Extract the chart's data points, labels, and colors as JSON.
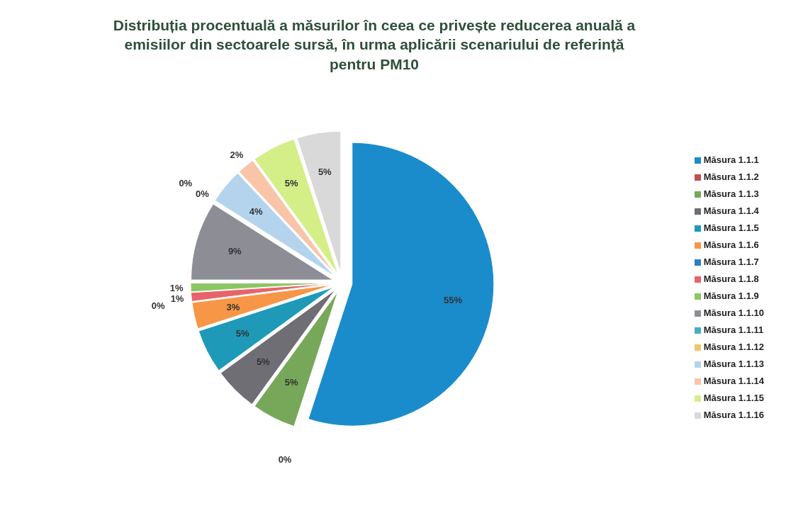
{
  "chart_data": {
    "type": "pie",
    "title": "Distribuția procentuală a măsurilor în ceea ce privește reducerea anuală a emisiilor din sectoarele sursă, în urma aplicării scenariului de referință pentru PM10",
    "categories": [
      "Măsura 1.1.1",
      "Măsura 1.1.2",
      "Măsura 1.1.3",
      "Măsura 1.1.4",
      "Măsura 1.1.5",
      "Măsura 1.1.6",
      "Măsura 1.1.7",
      "Măsura 1.1.8",
      "Măsura 1.1.9",
      "Măsura 1.1.10",
      "Măsura 1.1.11",
      "Măsura 1.1.12",
      "Măsura 1.1.13",
      "Măsura 1.1.14",
      "Măsura 1.1.15",
      "Măsura 1.1.16"
    ],
    "values": [
      55,
      0,
      5,
      5,
      5,
      3,
      0,
      1,
      1,
      9,
      0,
      0,
      4,
      2,
      5,
      5
    ],
    "value_labels": [
      "55%",
      "0%",
      "5%",
      "5%",
      "5%",
      "3%",
      "0%",
      "1%",
      "1%",
      "9%",
      "0%",
      "0%",
      "4%",
      "2%",
      "5%",
      "5%"
    ],
    "colors": [
      "#1a8ccc",
      "#c0504d",
      "#77a85a",
      "#6e6e74",
      "#1e9ab8",
      "#f79646",
      "#2c7fc0",
      "#e8636a",
      "#8cc665",
      "#8d8d96",
      "#4bacc6",
      "#f5c36a",
      "#b4d4ee",
      "#f9c4a8",
      "#d4ee88",
      "#d9d9d9"
    ],
    "legend": "right"
  }
}
